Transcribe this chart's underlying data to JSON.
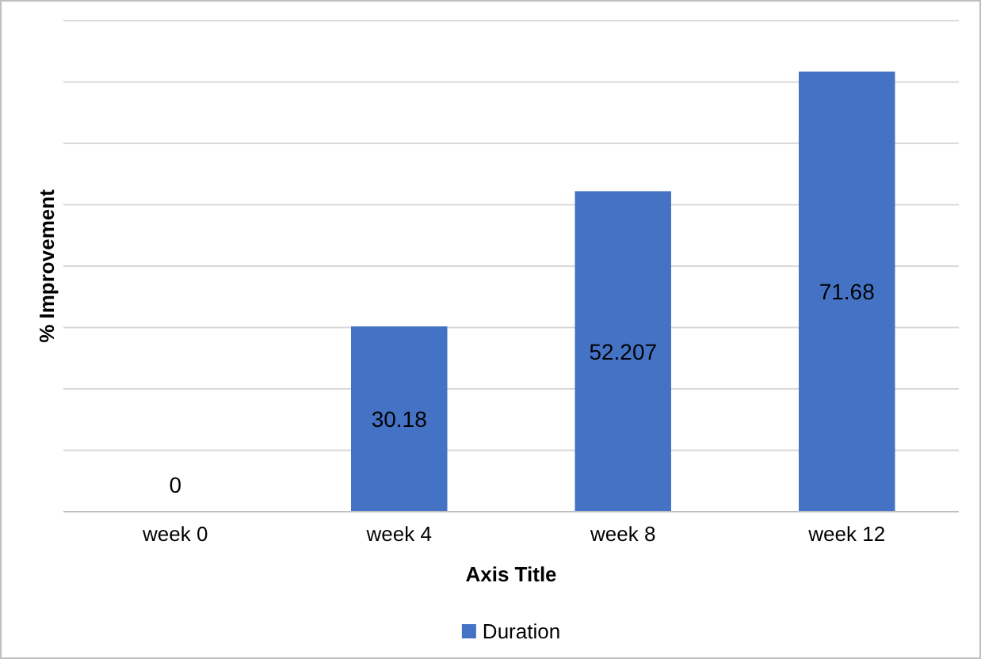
{
  "chart_data": {
    "type": "bar",
    "xlabel": "Axis Title",
    "ylabel": "% Improvement",
    "categories": [
      "week 0",
      "week 4",
      "week 8",
      "week 12"
    ],
    "series": [
      {
        "name": "Duration",
        "color": "#4472c4",
        "values": [
          0,
          30.18,
          52.207,
          71.68
        ]
      }
    ],
    "ylim": [
      0,
      80
    ],
    "yticks": [
      {
        "value": 0,
        "label": null
      },
      {
        "value": 10,
        "label": null
      },
      {
        "value": 20,
        "label": null
      },
      {
        "value": 30,
        "label": null
      },
      {
        "value": 40,
        "label": null
      },
      {
        "value": 50,
        "label": null
      },
      {
        "value": 60,
        "label": null
      },
      {
        "value": 70,
        "label": null
      },
      {
        "value": 80,
        "label": null
      }
    ],
    "tick_labels": "x",
    "grid": "y",
    "data_labels": true,
    "legend": "bottom"
  }
}
